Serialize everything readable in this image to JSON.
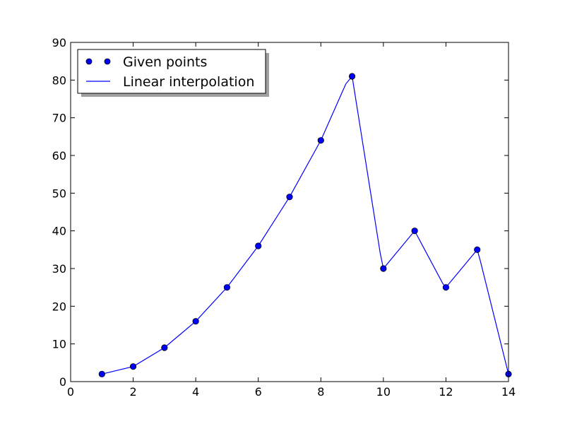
{
  "chart_data": {
    "type": "line",
    "title": "",
    "xlabel": "",
    "ylabel": "",
    "xlim": [
      0,
      14
    ],
    "ylim": [
      0,
      90
    ],
    "xticks": [
      0,
      2,
      4,
      6,
      8,
      10,
      12,
      14
    ],
    "yticks": [
      0,
      10,
      20,
      30,
      40,
      50,
      60,
      70,
      80,
      90
    ],
    "grid": false,
    "legend_position": "top-left",
    "series": [
      {
        "name": "Given points",
        "style": "markers",
        "color": "#0000ff",
        "x": [
          1,
          2,
          3,
          4,
          5,
          6,
          7,
          8,
          9,
          10,
          11,
          12,
          13,
          14
        ],
        "y": [
          2,
          4,
          9,
          16,
          25,
          36,
          49,
          64,
          81,
          30,
          40,
          25,
          35,
          2
        ]
      },
      {
        "name": "Linear interpolation",
        "style": "line",
        "color": "#0000ff",
        "x": [
          1,
          2,
          3,
          4,
          5,
          6,
          7,
          8,
          8.8,
          9,
          9.9,
          10,
          11,
          11.9,
          12,
          13,
          13.1,
          14
        ],
        "y": [
          2,
          4,
          9,
          16,
          25,
          36,
          49,
          64,
          79,
          81,
          34,
          30,
          40,
          26,
          25,
          35,
          32,
          2
        ]
      }
    ]
  }
}
